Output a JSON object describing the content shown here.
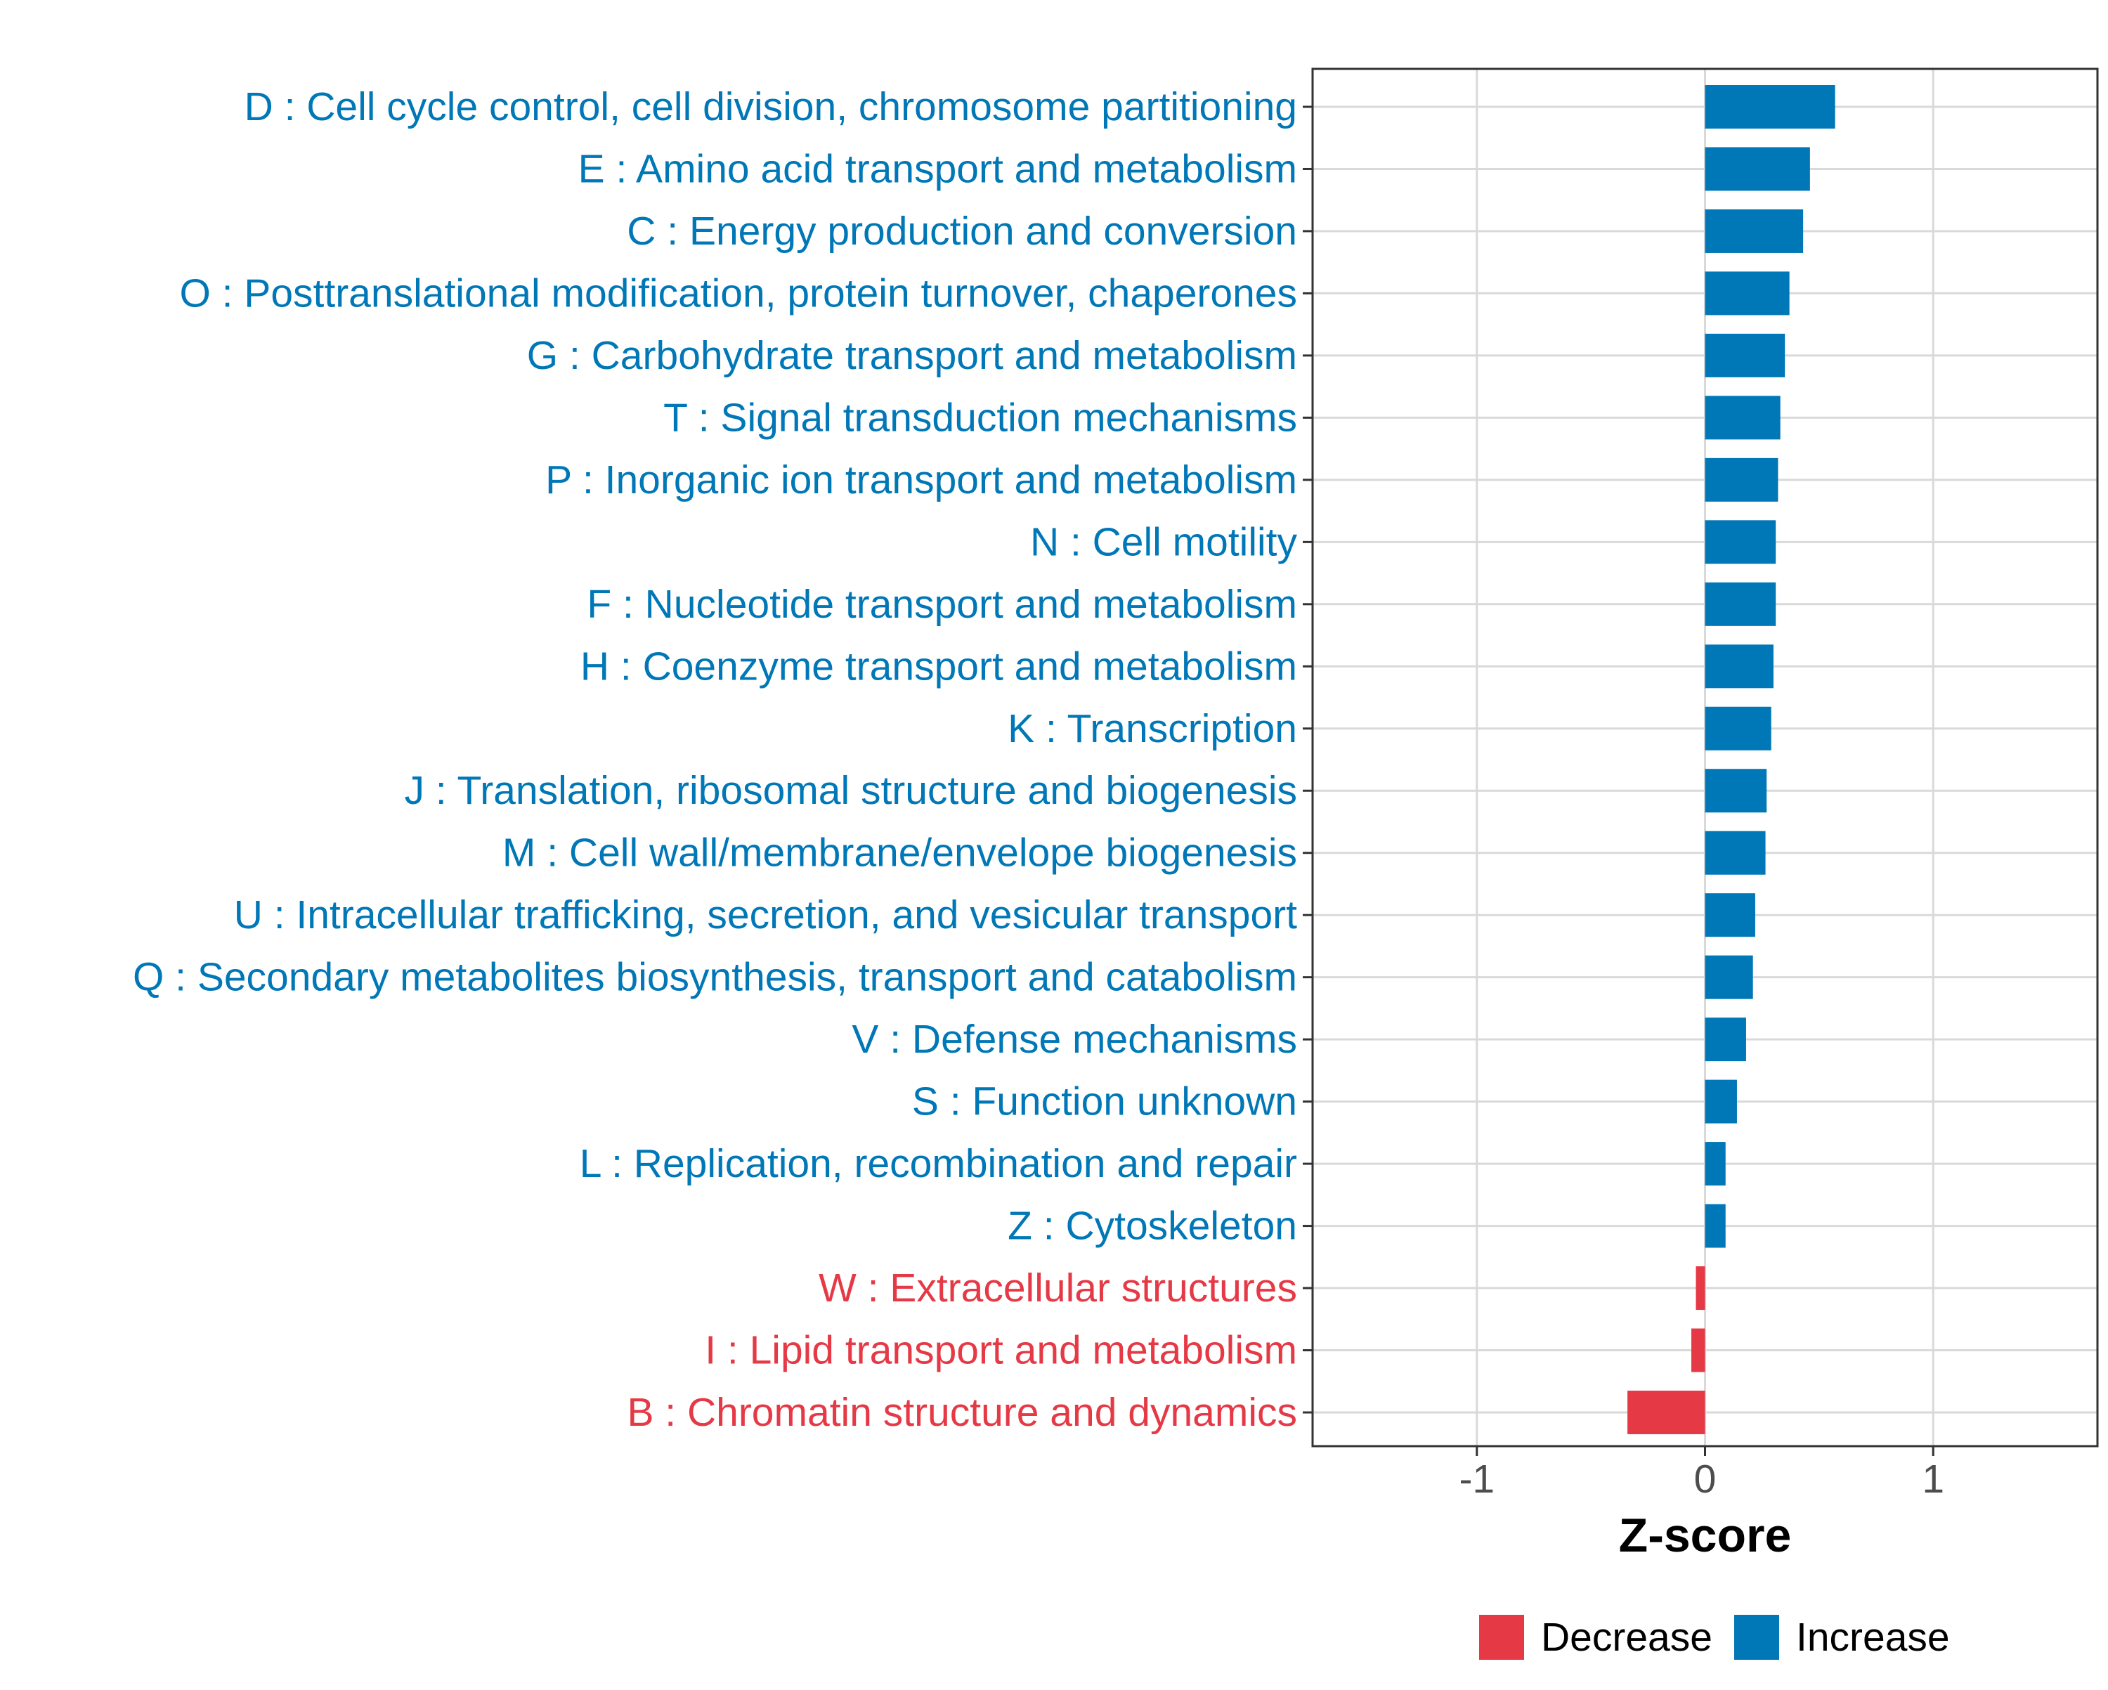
{
  "chart_data": {
    "type": "bar",
    "orientation": "horizontal",
    "categories": [
      "D : Cell cycle control, cell division, chromosome partitioning",
      "E : Amino acid transport and metabolism",
      "C : Energy production and conversion",
      "O : Posttranslational modification, protein turnover, chaperones",
      "G : Carbohydrate transport and metabolism",
      "T : Signal transduction mechanisms",
      "P : Inorganic ion transport and metabolism",
      "N : Cell motility",
      "F : Nucleotide transport and metabolism",
      "H : Coenzyme transport and metabolism",
      "K : Transcription",
      "J : Translation, ribosomal structure and biogenesis",
      "M : Cell wall/membrane/envelope biogenesis",
      "U : Intracellular trafficking, secretion, and vesicular transport",
      "Q : Secondary metabolites biosynthesis, transport and catabolism",
      "V : Defense mechanisms",
      "S : Function unknown",
      "L : Replication, recombination and repair",
      "Z : Cytoskeleton",
      "W : Extracellular structures",
      "I : Lipid transport and metabolism",
      "B : Chromatin structure and dynamics"
    ],
    "values": [
      0.57,
      0.46,
      0.43,
      0.37,
      0.35,
      0.33,
      0.32,
      0.31,
      0.31,
      0.3,
      0.29,
      0.27,
      0.265,
      0.22,
      0.21,
      0.18,
      0.14,
      0.09,
      0.09,
      -0.04,
      -0.06,
      -0.34
    ],
    "groups": [
      "Increase",
      "Increase",
      "Increase",
      "Increase",
      "Increase",
      "Increase",
      "Increase",
      "Increase",
      "Increase",
      "Increase",
      "Increase",
      "Increase",
      "Increase",
      "Increase",
      "Increase",
      "Increase",
      "Increase",
      "Increase",
      "Increase",
      "Decrease",
      "Decrease",
      "Decrease"
    ],
    "title": "",
    "xlabel": "Z-score",
    "ylabel": "",
    "xlim": [
      -1.72,
      1.72
    ],
    "xticks": [
      -1,
      0,
      1
    ],
    "xtick_labels": [
      "-1",
      "0",
      "1"
    ],
    "grid": true,
    "legend": {
      "position": "bottom",
      "entries": [
        {
          "label": "Decrease",
          "color": "#e63946"
        },
        {
          "label": "Increase",
          "color": "#0077b6"
        }
      ]
    },
    "colors": {
      "Decrease": "#e63946",
      "Increase": "#0077b6",
      "grid": "#d9d9d9",
      "axis": "#333333",
      "tick_text": "#4d4d4d"
    }
  }
}
